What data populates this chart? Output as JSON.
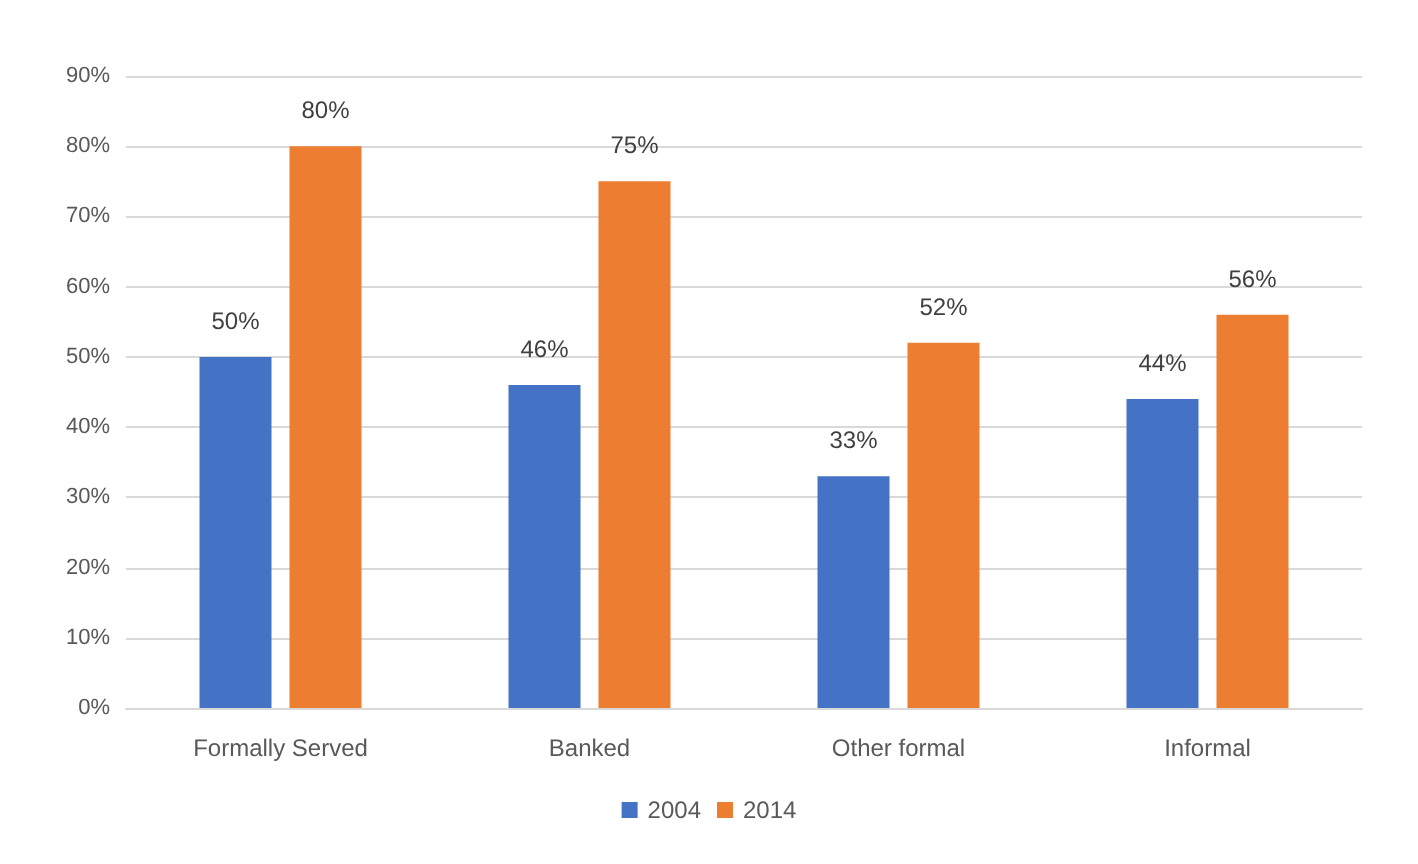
{
  "chart_data": {
    "type": "bar",
    "categories": [
      "Formally Served",
      "Banked",
      "Other formal",
      "Informal"
    ],
    "series": [
      {
        "name": "2004",
        "color": "#4472c4",
        "values": [
          50,
          46,
          33,
          44
        ],
        "value_labels": [
          "50%",
          "46%",
          "33%",
          "44%"
        ]
      },
      {
        "name": "2014",
        "color": "#ed7d31",
        "values": [
          80,
          75,
          52,
          56
        ],
        "value_labels": [
          "80%",
          "75%",
          "52%",
          "56%"
        ]
      }
    ],
    "ylim": [
      0,
      90
    ],
    "yticks": [
      {
        "value": 0,
        "label": "0%"
      },
      {
        "value": 10,
        "label": "10%"
      },
      {
        "value": 20,
        "label": "20%"
      },
      {
        "value": 30,
        "label": "30%"
      },
      {
        "value": 40,
        "label": "40%"
      },
      {
        "value": 50,
        "label": "50%"
      },
      {
        "value": 60,
        "label": "60%"
      },
      {
        "value": 70,
        "label": "70%"
      },
      {
        "value": 80,
        "label": "80%"
      },
      {
        "value": 90,
        "label": "90%"
      }
    ],
    "grid": "y",
    "legend": "bottom"
  }
}
